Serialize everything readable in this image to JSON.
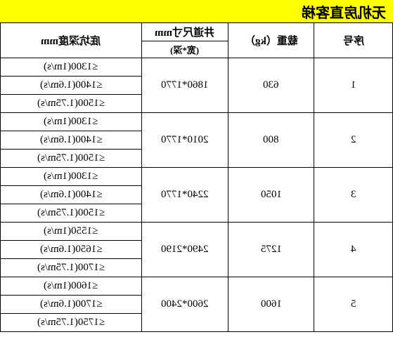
{
  "title": "无机房直客梯",
  "headers": {
    "pit_depth": "底坑深度mm",
    "shaft_size": "井道尺寸mm",
    "shaft_sub": "(宽*深)",
    "load": "载重（kg）",
    "seq": "序号"
  },
  "groups": [
    {
      "seq": "1",
      "load": "630",
      "shaft": "1860*1770",
      "pits": [
        "≤1300(1m/s)",
        "≤1400(1.6m/s)",
        "≤1500(1.75m/s)"
      ]
    },
    {
      "seq": "2",
      "load": "800",
      "shaft": "2010*1770",
      "pits": [
        "≤1300(1m/s)",
        "≤1400(1.6m/s)",
        "≤1500(1.75m/s)"
      ]
    },
    {
      "seq": "3",
      "load": "1050",
      "shaft": "2240*1770",
      "pits": [
        "≤1300(1m/s)",
        "≤1400(1.6m/s)",
        "≤1500(1.75m/s)"
      ]
    },
    {
      "seq": "4",
      "load": "1275",
      "shaft": "2490*2190",
      "pits": [
        "≤1550(1m/s)",
        "≤1650(1.6m/s)",
        "≤1700(1.75m/s)"
      ]
    },
    {
      "seq": "5",
      "load": "1600",
      "shaft": "2600*2400",
      "pits": [
        "≤1600(1m/s)",
        "≤1700(1.6m/s)",
        "≤1750(1.75m/s)"
      ]
    }
  ],
  "style": {
    "title_bg": "#ffff00",
    "border_color": "#000000",
    "bg": "#ffffff"
  }
}
